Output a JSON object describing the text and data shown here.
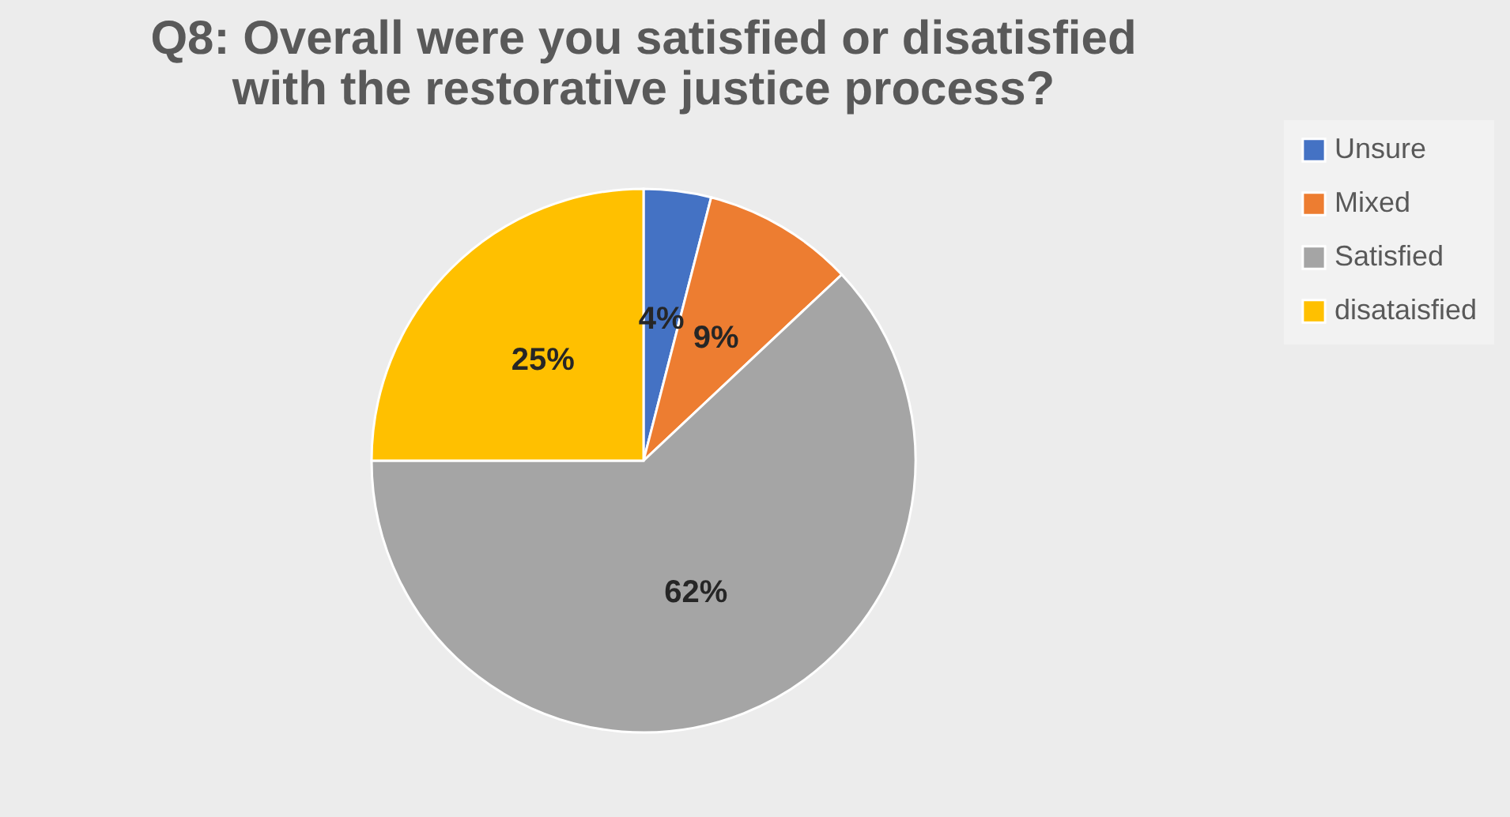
{
  "chart_data": {
    "type": "pie",
    "title": [
      "Q8: Overall were you satisfied or disatisfied",
      "with the restorative justice process?"
    ],
    "categories": [
      "Unsure",
      "Mixed",
      "Satisfied",
      "disataisfied"
    ],
    "values": [
      4,
      9,
      62,
      25
    ],
    "colors": [
      "#4472c4",
      "#ed7d31",
      "#a5a5a5",
      "#ffc000"
    ],
    "value_labels": [
      "4%",
      "9%",
      "62%",
      "25%"
    ],
    "legend": "right"
  }
}
